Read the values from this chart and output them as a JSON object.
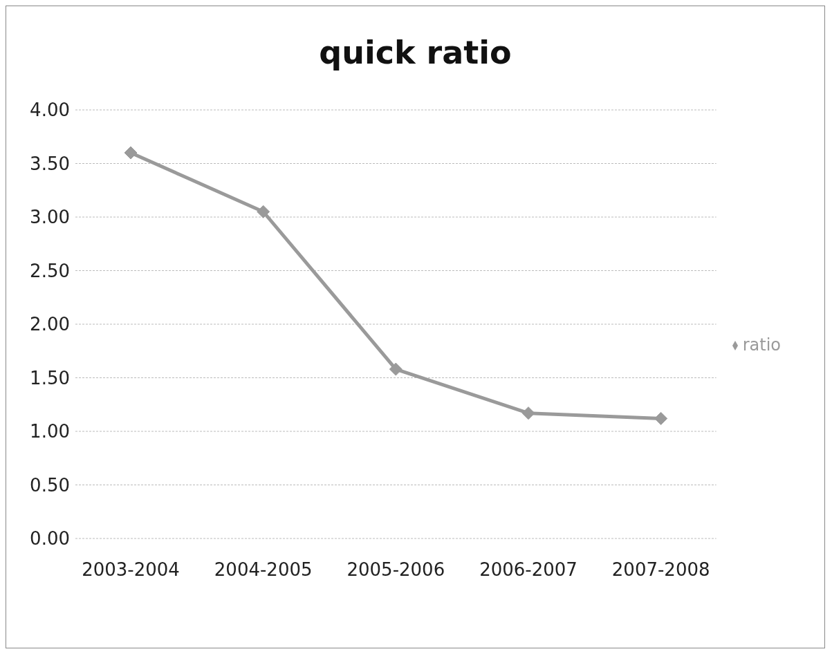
{
  "chart_data": {
    "type": "line",
    "title": "quick ratio",
    "categories": [
      "2003-2004",
      "2004-2005",
      "2005-2006",
      "2006-2007",
      "2007-2008"
    ],
    "series": [
      {
        "name": "ratio",
        "color": "#9a9a9a",
        "values": [
          3.6,
          3.05,
          1.58,
          1.17,
          1.12
        ]
      }
    ],
    "ylim": [
      0,
      4
    ],
    "yticks": [
      {
        "value": 0,
        "label": "0.00"
      },
      {
        "value": 0.5,
        "label": "0.50"
      },
      {
        "value": 1,
        "label": "1.00"
      },
      {
        "value": 1.5,
        "label": "1.50"
      },
      {
        "value": 2,
        "label": "2.00"
      },
      {
        "value": 2.5,
        "label": "2.50"
      },
      {
        "value": 3,
        "label": "3.00"
      },
      {
        "value": 3.5,
        "label": "3.50"
      },
      {
        "value": 4,
        "label": "4.00"
      }
    ],
    "grid": "y",
    "legend": "right",
    "marker": "diamond"
  }
}
